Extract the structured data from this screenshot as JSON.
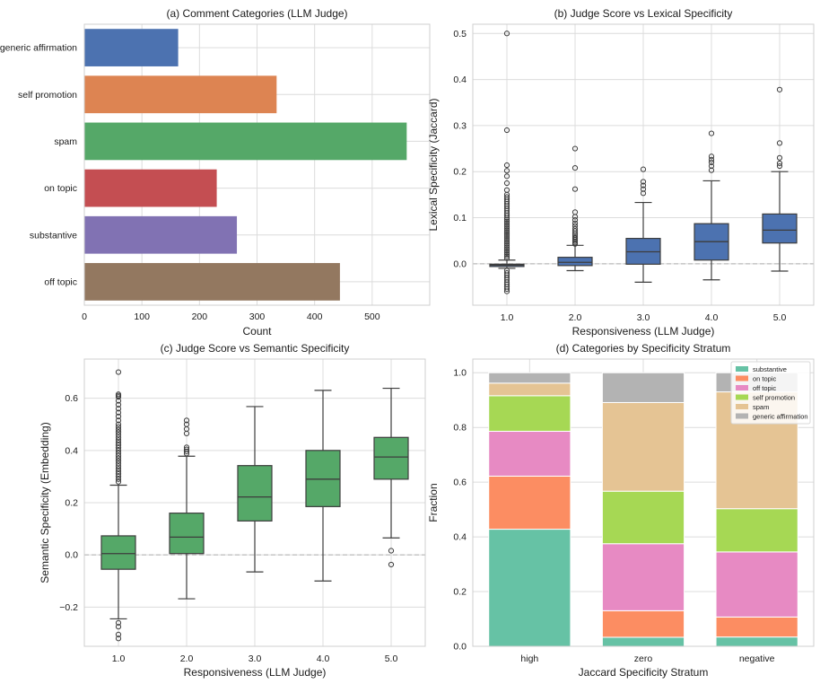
{
  "chart_data": [
    {
      "id": "a",
      "type": "bar",
      "orientation": "horizontal",
      "title": "(a) Comment Categories (LLM Judge)",
      "xlabel": "Count",
      "ylabel": "",
      "categories": [
        "generic affirmation",
        "self promotion",
        "spam",
        "on topic",
        "substantive",
        "off topic"
      ],
      "values": [
        163,
        334,
        560,
        230,
        265,
        444
      ],
      "colors": [
        "#4c72b0",
        "#dd8452",
        "#55a868",
        "#c44e52",
        "#8172b3",
        "#937860"
      ],
      "xlim": [
        0,
        600
      ],
      "xticks": [
        0,
        100,
        200,
        300,
        400,
        500
      ],
      "grid": true
    },
    {
      "id": "b",
      "type": "box",
      "title": "(b) Judge Score vs Lexical Specificity",
      "xlabel": "Responsiveness (LLM Judge)",
      "ylabel": "Lexical Specificity (Jaccard)",
      "categories": [
        "1.0",
        "2.0",
        "3.0",
        "4.0",
        "5.0"
      ],
      "color": "#4c72b0",
      "ylim": [
        -0.09,
        0.52
      ],
      "yticks": [
        0.0,
        0.1,
        0.2,
        0.3,
        0.4,
        0.5
      ],
      "ytick_labels": [
        "0.0",
        "0.1",
        "0.2",
        "0.3",
        "0.4",
        "0.5"
      ],
      "reference_line": 0,
      "boxes": [
        {
          "q1": -0.006,
          "median": -0.003,
          "q3": -0.001,
          "whislo": -0.01,
          "whishi": 0.008,
          "fliers": [
            0.5,
            0.29,
            0.214,
            0.202,
            0.19,
            0.175,
            0.16,
            0.15,
            0.145,
            0.14,
            0.135,
            0.13,
            0.125,
            0.12,
            0.115,
            0.11,
            0.105,
            0.1,
            0.096,
            0.092,
            0.088,
            0.084,
            0.08,
            0.076,
            0.072,
            0.068,
            0.064,
            0.06,
            0.056,
            0.052,
            0.048,
            0.044,
            0.04,
            0.036,
            0.032,
            0.028,
            0.024,
            0.02,
            0.016,
            0.012,
            -0.015,
            -0.02,
            -0.025,
            -0.03,
            -0.035,
            -0.04,
            -0.045,
            -0.05,
            -0.055,
            -0.06
          ]
        },
        {
          "q1": -0.004,
          "median": 0.003,
          "q3": 0.014,
          "whislo": -0.015,
          "whishi": 0.04,
          "fliers": [
            0.25,
            0.208,
            0.162,
            0.112,
            0.102,
            0.095,
            0.088,
            0.082,
            0.076,
            0.071,
            0.066,
            0.062,
            0.058,
            0.055,
            0.052,
            0.049,
            0.046,
            0.043
          ]
        },
        {
          "q1": -0.001,
          "median": 0.026,
          "q3": 0.055,
          "whislo": -0.04,
          "whishi": 0.133,
          "fliers": [
            0.205,
            0.178,
            0.17,
            0.162,
            0.153
          ]
        },
        {
          "q1": 0.008,
          "median": 0.048,
          "q3": 0.087,
          "whislo": -0.035,
          "whishi": 0.18,
          "fliers": [
            0.283,
            0.233,
            0.226,
            0.22,
            0.212,
            0.203
          ]
        },
        {
          "q1": 0.045,
          "median": 0.073,
          "q3": 0.108,
          "whislo": -0.016,
          "whishi": 0.2,
          "fliers": [
            0.378,
            0.262,
            0.23,
            0.218,
            0.212
          ]
        }
      ],
      "grid": true
    },
    {
      "id": "c",
      "type": "box",
      "title": "(c) Judge Score vs Semantic Specificity",
      "xlabel": "Responsiveness (LLM Judge)",
      "ylabel": "Semantic Specificity (Embedding)",
      "categories": [
        "1.0",
        "2.0",
        "3.0",
        "4.0",
        "5.0"
      ],
      "color": "#55a868",
      "ylim": [
        -0.35,
        0.75
      ],
      "yticks": [
        -0.2,
        0.0,
        0.2,
        0.4,
        0.6
      ],
      "ytick_labels": [
        "−0.2",
        "0.0",
        "0.2",
        "0.4",
        "0.6"
      ],
      "reference_line": 0,
      "boxes": [
        {
          "q1": -0.055,
          "median": 0.005,
          "q3": 0.073,
          "whislo": -0.245,
          "whishi": 0.267,
          "fliers": [
            0.7,
            0.615,
            0.61,
            0.605,
            0.59,
            0.575,
            0.56,
            0.545,
            0.53,
            0.515,
            0.5,
            0.49,
            0.48,
            0.47,
            0.46,
            0.45,
            0.44,
            0.43,
            0.42,
            0.41,
            0.4,
            0.39,
            0.38,
            0.37,
            0.36,
            0.35,
            0.34,
            0.33,
            0.32,
            0.31,
            0.3,
            0.29,
            0.28,
            -0.26,
            -0.275,
            -0.305,
            -0.32
          ]
        },
        {
          "q1": 0.005,
          "median": 0.068,
          "q3": 0.16,
          "whislo": -0.168,
          "whishi": 0.378,
          "fliers": [
            0.515,
            0.5,
            0.482,
            0.465,
            0.412,
            0.404,
            0.396,
            0.388
          ]
        },
        {
          "q1": 0.13,
          "median": 0.222,
          "q3": 0.342,
          "whislo": -0.065,
          "whishi": 0.568,
          "fliers": []
        },
        {
          "q1": 0.185,
          "median": 0.29,
          "q3": 0.4,
          "whislo": -0.1,
          "whishi": 0.63,
          "fliers": []
        },
        {
          "q1": 0.29,
          "median": 0.375,
          "q3": 0.45,
          "whislo": 0.065,
          "whishi": 0.638,
          "fliers": [
            0.016,
            -0.037
          ]
        }
      ],
      "grid": true
    },
    {
      "id": "d",
      "type": "stacked_bar",
      "title": "(d) Categories by Specificity Stratum",
      "xlabel": "Jaccard Specificity Stratum",
      "ylabel": "Fraction",
      "categories": [
        "high",
        "zero",
        "negative"
      ],
      "ylim": [
        0,
        1.05
      ],
      "yticks": [
        0.0,
        0.2,
        0.4,
        0.6,
        0.8,
        1.0
      ],
      "ytick_labels": [
        "0.0",
        "0.2",
        "0.4",
        "0.6",
        "0.8",
        "1.0"
      ],
      "series": [
        {
          "name": "substantive",
          "color": "#66c2a5",
          "values": [
            0.428,
            0.033,
            0.034
          ]
        },
        {
          "name": "on topic",
          "color": "#fc8d62",
          "values": [
            0.194,
            0.097,
            0.073
          ]
        },
        {
          "name": "off topic",
          "color": "#e78ac3",
          "values": [
            0.164,
            0.245,
            0.238
          ]
        },
        {
          "name": "self promotion",
          "color": "#a6d854",
          "values": [
            0.13,
            0.192,
            0.158
          ]
        },
        {
          "name": "spam",
          "color": "#e5c494",
          "values": [
            0.046,
            0.324,
            0.427
          ]
        },
        {
          "name": "generic affirmation",
          "color": "#b3b3b3",
          "values": [
            0.038,
            0.109,
            0.07
          ]
        }
      ],
      "legend": "top-right",
      "grid": true
    }
  ]
}
